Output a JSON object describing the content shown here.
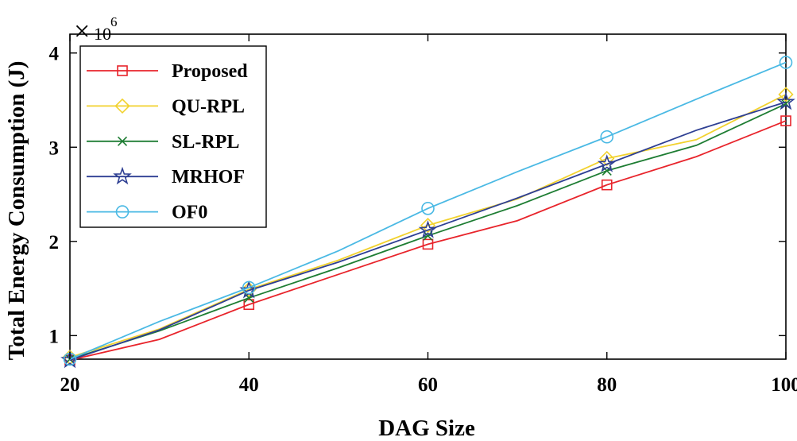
{
  "chart_data": {
    "type": "line",
    "title": "",
    "xlabel": "DAG Size",
    "ylabel": "Total Energy Consumption (J)",
    "y_multiplier_base": "10",
    "y_multiplier_exp": "6",
    "xlim": [
      20,
      100
    ],
    "ylim": [
      0.75,
      4.2
    ],
    "x_ticks": [
      20,
      40,
      60,
      80,
      100
    ],
    "x_tick_labels": [
      "20",
      "40",
      "60",
      "80",
      "100"
    ],
    "y_ticks": [
      1,
      2,
      3,
      4
    ],
    "y_tick_labels": [
      "1",
      "2",
      "3",
      "4"
    ],
    "grid": false,
    "legend_position": "top-left",
    "x": [
      20,
      30,
      40,
      50,
      60,
      70,
      80,
      90,
      100
    ],
    "series": [
      {
        "name": "Proposed",
        "color": "#e8242b",
        "marker": "square",
        "values": [
          0.74,
          0.96,
          1.33,
          1.65,
          1.97,
          2.22,
          2.6,
          2.9,
          3.28
        ]
      },
      {
        "name": "QU-RPL",
        "color": "#f2d22e",
        "marker": "diamond",
        "values": [
          0.77,
          1.07,
          1.49,
          1.8,
          2.17,
          2.45,
          2.88,
          3.08,
          3.56
        ]
      },
      {
        "name": "SL-RPL",
        "color": "#1e7d33",
        "marker": "x",
        "values": [
          0.75,
          1.05,
          1.4,
          1.72,
          2.06,
          2.38,
          2.75,
          3.02,
          3.46
        ]
      },
      {
        "name": "MRHOF",
        "color": "#2e3f93",
        "marker": "star",
        "values": [
          0.74,
          1.06,
          1.48,
          1.78,
          2.12,
          2.46,
          2.82,
          3.18,
          3.48
        ]
      },
      {
        "name": "OF0",
        "color": "#4ab9e4",
        "marker": "circle",
        "values": [
          0.75,
          1.15,
          1.51,
          1.9,
          2.35,
          2.74,
          3.11,
          3.51,
          3.9
        ]
      }
    ]
  }
}
